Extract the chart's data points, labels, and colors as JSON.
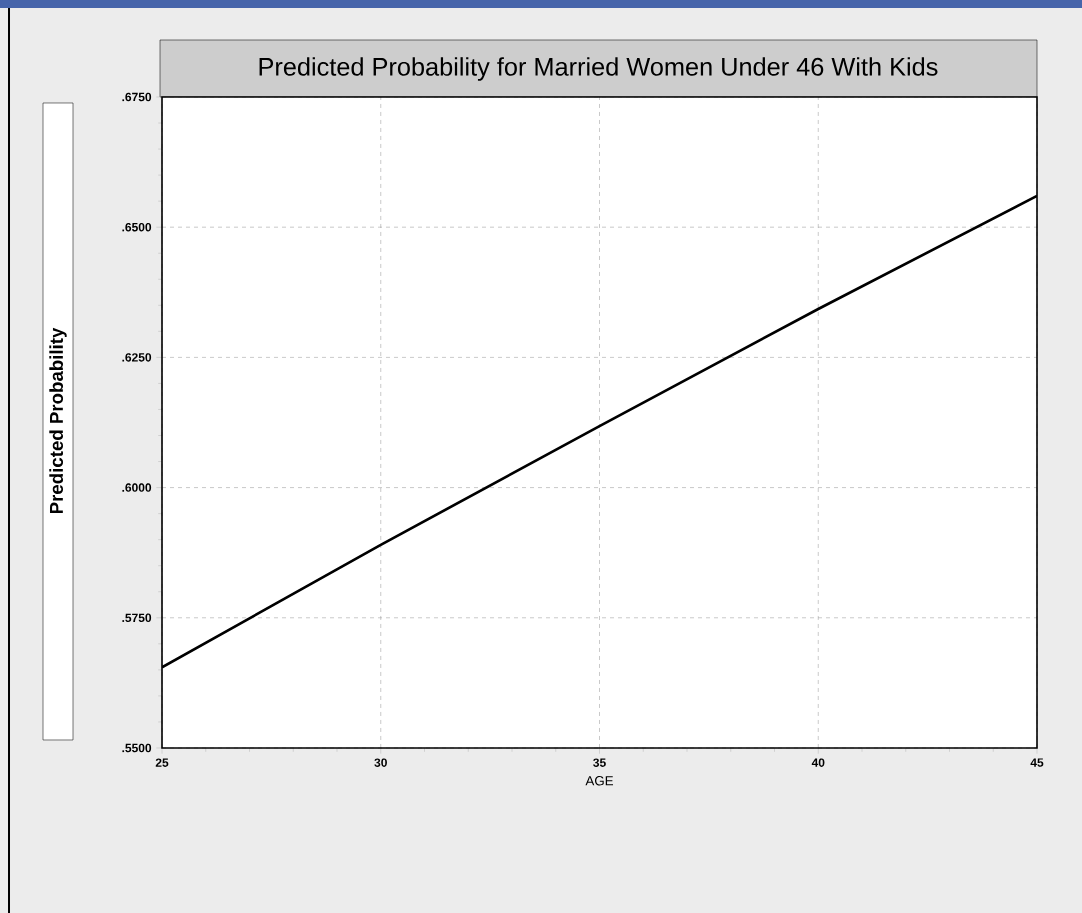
{
  "chart_data": {
    "type": "line",
    "title": "Predicted Probability for Married Women Under 46 With Kids",
    "xlabel": "AGE",
    "ylabel": "Predicted Probability",
    "x": [
      25,
      30,
      35,
      40,
      45
    ],
    "series": [
      {
        "color": "#000000",
        "values": [
          0.5655,
          0.589,
          0.6118,
          0.6343,
          0.656
        ]
      }
    ],
    "xlim": [
      25,
      45
    ],
    "xticks": [
      25,
      30,
      35,
      40,
      45
    ],
    "ylim": [
      0.55,
      0.675
    ],
    "yticks": [
      {
        "value": 0.55,
        "label": ".5500"
      },
      {
        "value": 0.575,
        "label": ".5750"
      },
      {
        "value": 0.6,
        "label": ".6000"
      },
      {
        "value": 0.625,
        "label": ".6250"
      },
      {
        "value": 0.65,
        "label": ".6500"
      },
      {
        "value": 0.675,
        "label": ".6750"
      }
    ],
    "grid": true,
    "marker": "none",
    "line_style": "solid"
  }
}
